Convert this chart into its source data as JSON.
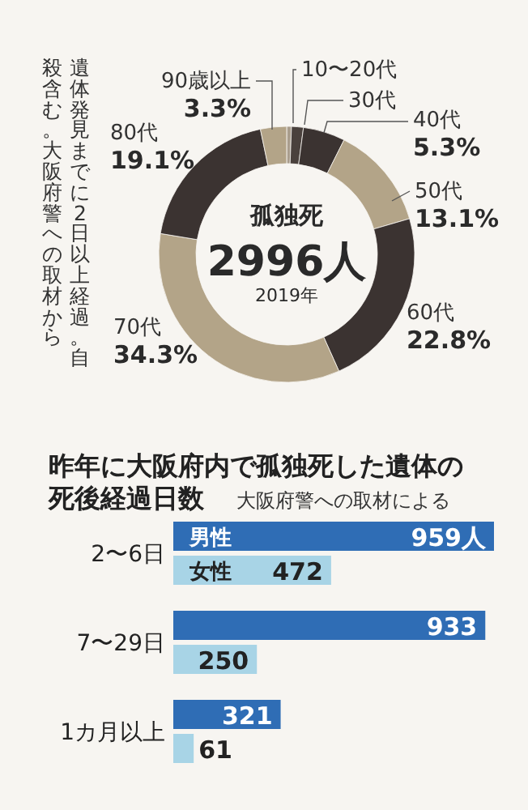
{
  "chart_data": [
    {
      "type": "donut",
      "categories": [
        "10〜20代",
        "30代",
        "40代",
        "50代",
        "60代",
        "70代",
        "80代",
        "90歳以上"
      ],
      "values": [
        0.6,
        1.5,
        5.3,
        13.1,
        22.8,
        34.3,
        19.1,
        3.3
      ],
      "value_labels": [
        null,
        null,
        "5.3%",
        "13.1%",
        "22.8%",
        "34.3%",
        "19.1%",
        "3.3%"
      ],
      "colors": [
        "#a99d8d",
        "#4a413d",
        "#3b3331",
        "#b3a488",
        "#3b3331",
        "#b3a488",
        "#3b3331",
        "#b3a488"
      ],
      "annotations": [
        "孤独死",
        "2996人",
        "2019年",
        "遺体発見までに2日以上経過。自殺含む。大阪府警への取材から"
      ]
    },
    {
      "type": "bar",
      "orientation": "horizontal",
      "title": "昨年に大阪府内で孤独死した遺体の死後経過日数",
      "subtitle": "大阪府警への取材による",
      "categories": [
        "2〜6日",
        "7〜29日",
        "1カ月以上"
      ],
      "series": [
        {
          "name": "男性",
          "color": "#2f6db5",
          "values": [
            959,
            933,
            321
          ],
          "value_labels": [
            "959人",
            "933",
            "321"
          ]
        },
        {
          "name": "女性",
          "color": "#a8d4e6",
          "values": [
            472,
            250,
            61
          ],
          "value_labels": [
            "472",
            "250",
            "61"
          ]
        }
      ]
    }
  ]
}
